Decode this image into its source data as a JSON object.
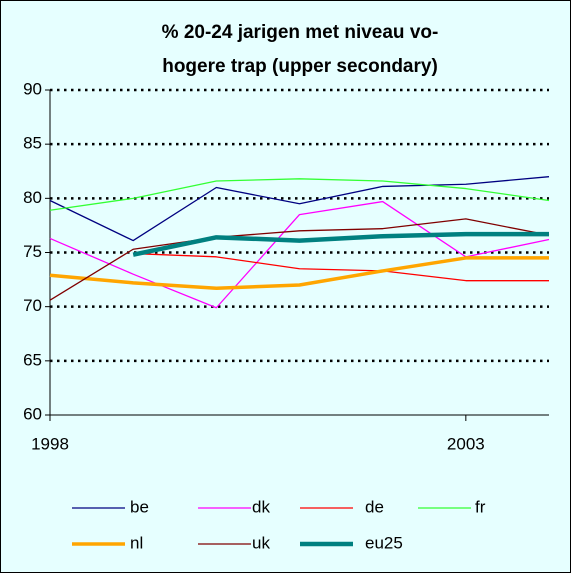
{
  "chart_data": {
    "type": "line",
    "title": [
      "% 20-24 jarigen met niveau vo-",
      "hogere trap (upper secondary)"
    ],
    "x": [
      1998,
      1999,
      2000,
      2001,
      2002,
      2003,
      2004
    ],
    "xlim": [
      1998,
      2004
    ],
    "xticks": [
      1998,
      2003
    ],
    "ylim": [
      60,
      90
    ],
    "yticks": [
      60,
      65,
      70,
      75,
      80,
      85,
      90
    ],
    "grid": true,
    "series": [
      {
        "name": "be",
        "color": "#000080",
        "values": [
          79.8,
          76.1,
          81.0,
          79.5,
          81.1,
          81.3,
          82.0
        ]
      },
      {
        "name": "dk",
        "color": "#ff00ff",
        "values": [
          76.3,
          73.0,
          69.9,
          78.5,
          79.7,
          74.6,
          76.2
        ]
      },
      {
        "name": "de",
        "color": "#ff0000",
        "values": [
          null,
          74.9,
          74.6,
          73.5,
          73.3,
          72.4,
          72.4
        ]
      },
      {
        "name": "fr",
        "color": "#33ff33",
        "values": [
          78.9,
          80.0,
          81.6,
          81.8,
          81.6,
          80.9,
          79.8
        ]
      },
      {
        "name": "nl",
        "color": "#ffa500",
        "values": [
          72.9,
          72.2,
          71.7,
          72.0,
          73.3,
          74.5,
          74.5
        ]
      },
      {
        "name": "uk",
        "color": "#800000",
        "values": [
          70.6,
          75.3,
          76.4,
          77.0,
          77.2,
          78.1,
          76.6
        ]
      },
      {
        "name": "eu25",
        "color": "#008080",
        "values": [
          null,
          74.8,
          76.4,
          76.1,
          76.5,
          76.7,
          76.7
        ]
      }
    ]
  }
}
